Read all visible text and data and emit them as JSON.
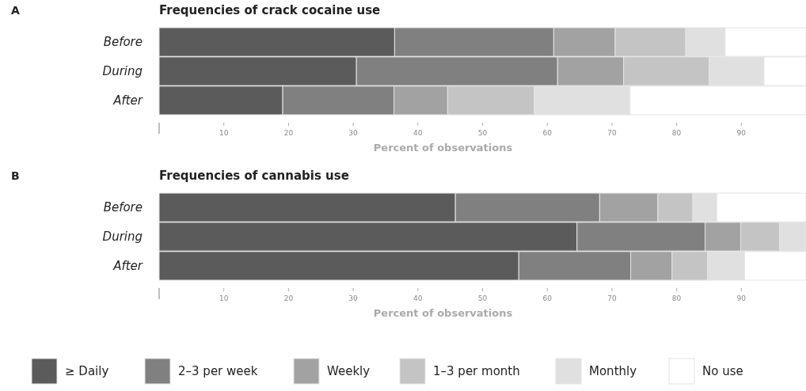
{
  "chart_data": [
    {
      "type": "bar",
      "orientation": "horizontal",
      "stacked": true,
      "title": "Frequencies of crack cocaine use",
      "xlabel": "Percent of observations",
      "annotations": [
        "A"
      ],
      "categories": [
        "Before",
        "During",
        "After"
      ],
      "xlim": [
        0,
        100
      ],
      "xticks": [
        {
          "value": 0,
          "label": null
        },
        10,
        20,
        30,
        40,
        50,
        60,
        70,
        80,
        90
      ],
      "grid": false,
      "legend": false,
      "series": [
        {
          "color": "#5b5b5b",
          "values": [
            36.4,
            30.5,
            19.1
          ]
        },
        {
          "color": "#808080",
          "values": [
            24.6,
            31.1,
            17.2
          ]
        },
        {
          "color": "#a2a2a2",
          "values": [
            9.5,
            10.2,
            8.3
          ]
        },
        {
          "color": "#c4c4c4",
          "values": [
            10.9,
            13.2,
            13.4
          ]
        },
        {
          "color": "#e0e0e0",
          "values": [
            6.1,
            8.5,
            14.8
          ]
        },
        {
          "color": "#ffffff",
          "values": [
            12.5,
            6.5,
            27.2
          ]
        }
      ]
    },
    {
      "type": "bar",
      "orientation": "horizontal",
      "stacked": true,
      "title": "Frequencies of cannabis use",
      "xlabel": "Percent of observations",
      "annotations": [
        "B"
      ],
      "categories": [
        "Before",
        "During",
        "After"
      ],
      "xlim": [
        0,
        100
      ],
      "xticks": [
        {
          "value": 0,
          "label": null
        },
        10,
        20,
        30,
        40,
        50,
        60,
        70,
        80,
        90
      ],
      "grid": false,
      "legend": "bottom",
      "series": [
        {
          "name": "≥ Daily",
          "color": "#5b5b5b",
          "values": [
            45.8,
            64.6,
            55.6
          ]
        },
        {
          "name": "2–3 per week",
          "color": "#808080",
          "values": [
            22.3,
            19.8,
            17.3
          ]
        },
        {
          "name": "Weekly",
          "color": "#a2a2a2",
          "values": [
            9.0,
            5.5,
            6.4
          ]
        },
        {
          "name": "1–3 per month",
          "color": "#c4c4c4",
          "values": [
            5.4,
            6.0,
            5.5
          ]
        },
        {
          "name": "Monthly",
          "color": "#e0e0e0",
          "values": [
            3.7,
            4.1,
            5.7
          ]
        },
        {
          "name": "No use",
          "color": "#ffffff",
          "values": [
            13.8,
            0,
            9.5
          ]
        }
      ]
    }
  ]
}
